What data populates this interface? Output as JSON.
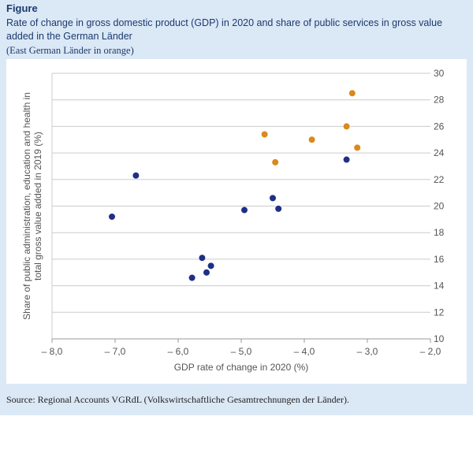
{
  "figure_label": "Figure",
  "source": "Source: Regional Accounts VGRdL (Volkswirtschaftliche Gesamtrechnungen der Länder).",
  "chart_data": {
    "type": "scatter",
    "title": "Rate of change in gross domestic product (GDP) in 2020 and share of public services in gross value added in the German Länder",
    "subtitle": "(East German Länder in orange)",
    "xlabel": "GDP rate of change in 2020 (%)",
    "ylabel_line1": "Share of public administration, education and health in",
    "ylabel_line2": "total gross value added in 2019 (%)",
    "xlim": [
      -8,
      -2
    ],
    "ylim": [
      10,
      30
    ],
    "x_ticks": [
      -8,
      -7,
      -6,
      -5,
      -4,
      -3,
      -2
    ],
    "x_tick_labels": [
      "– 8,0",
      "– 7,0",
      "– 6,0",
      "– 5,0",
      "– 4,0",
      "– 3,0",
      "– 2,0"
    ],
    "y_ticks": [
      10,
      12,
      14,
      16,
      18,
      20,
      22,
      24,
      26,
      28,
      30
    ],
    "grid": "horizontal",
    "colors": {
      "west": "#1f2f86",
      "east": "#d98a1c",
      "grid": "#cccccc"
    },
    "series": [
      {
        "group": "west",
        "points": [
          {
            "x": -7.05,
            "y": 19.2
          },
          {
            "x": -6.67,
            "y": 22.3
          },
          {
            "x": -5.62,
            "y": 16.1
          },
          {
            "x": -5.48,
            "y": 15.5
          },
          {
            "x": -5.55,
            "y": 15.0
          },
          {
            "x": -5.78,
            "y": 14.6
          },
          {
            "x": -4.95,
            "y": 19.7
          },
          {
            "x": -4.5,
            "y": 20.6
          },
          {
            "x": -4.41,
            "y": 19.8
          },
          {
            "x": -3.33,
            "y": 23.5
          }
        ]
      },
      {
        "group": "east",
        "points": [
          {
            "x": -4.63,
            "y": 25.4
          },
          {
            "x": -4.46,
            "y": 23.3
          },
          {
            "x": -3.88,
            "y": 25.0
          },
          {
            "x": -3.33,
            "y": 26.0
          },
          {
            "x": -3.24,
            "y": 28.5
          },
          {
            "x": -3.16,
            "y": 24.4
          }
        ]
      }
    ]
  }
}
